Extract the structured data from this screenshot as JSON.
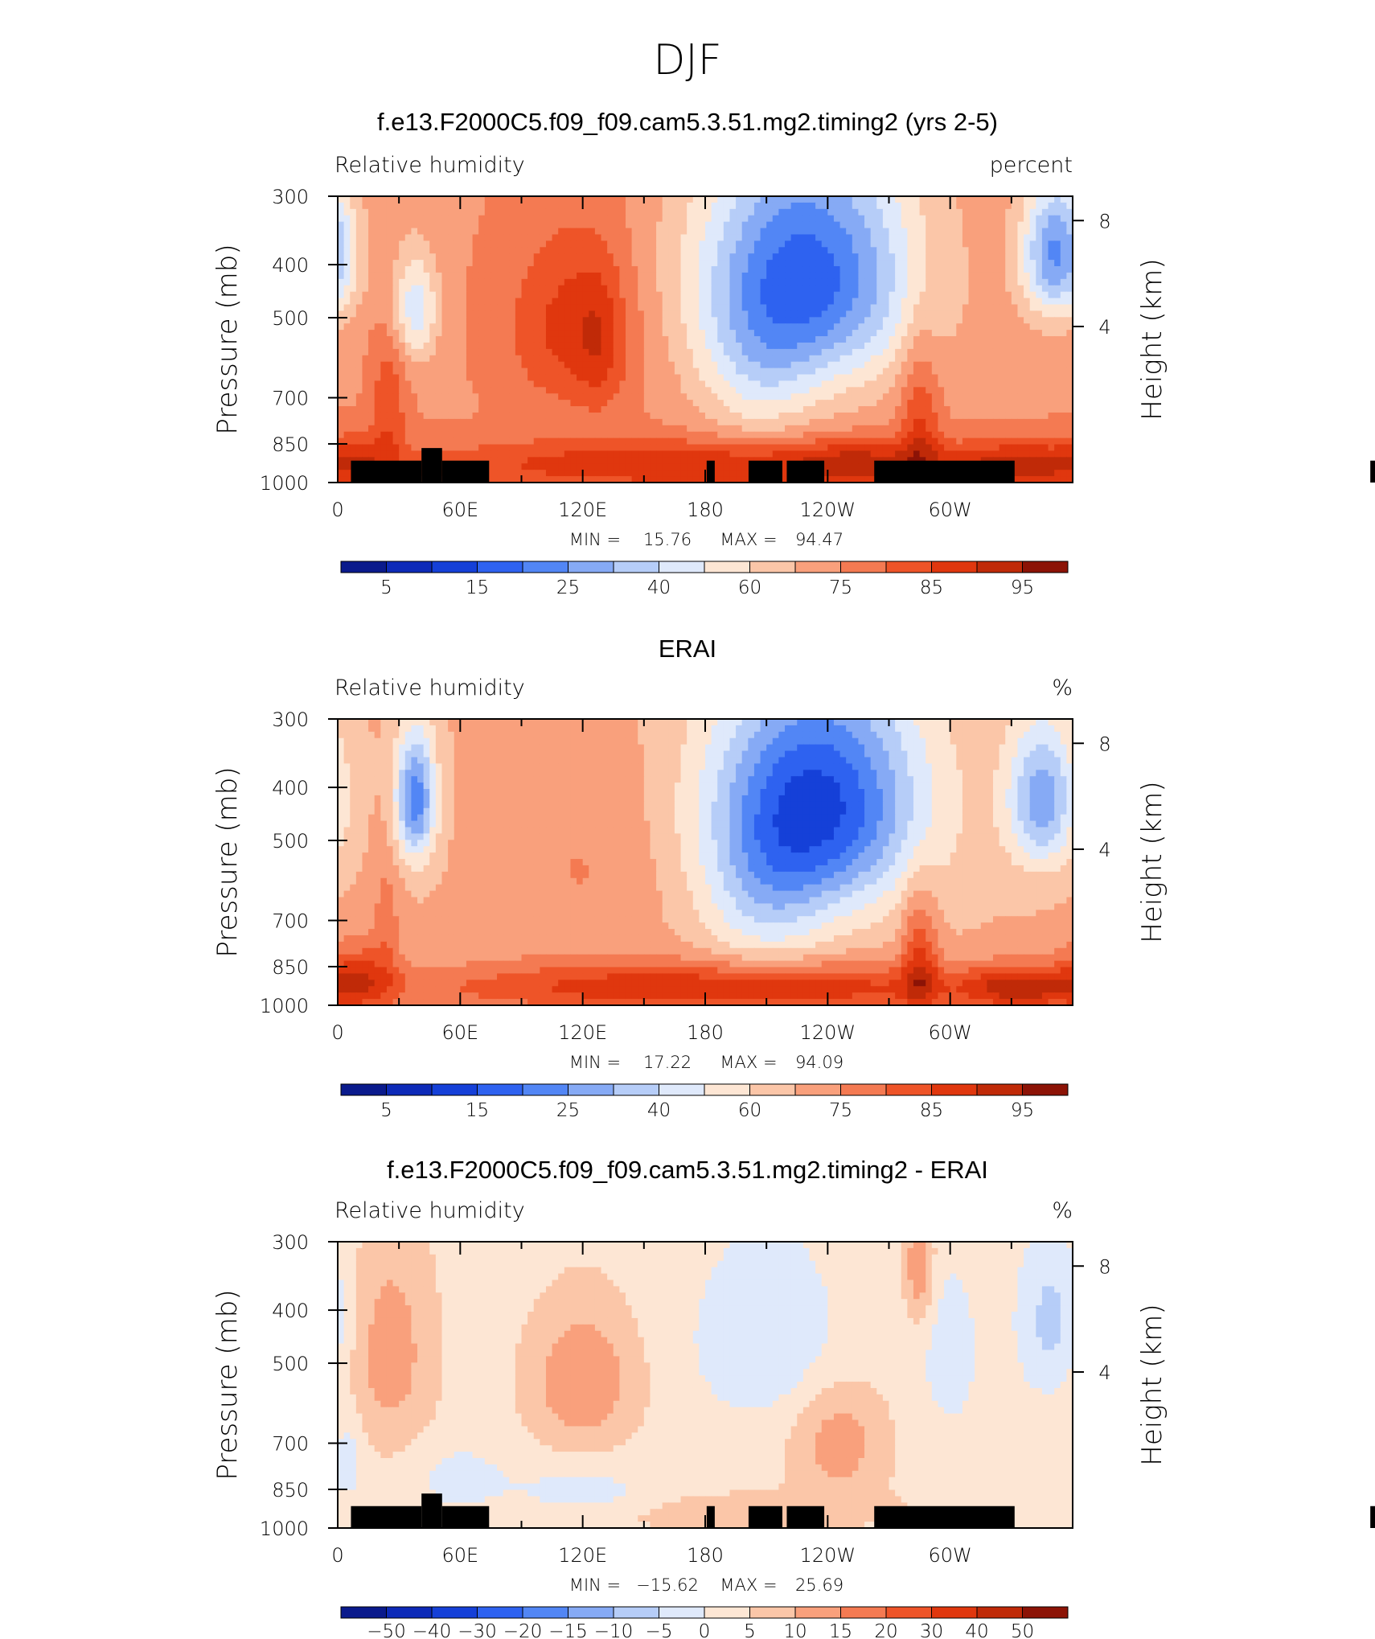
{
  "page_title": "DJF",
  "chart_data": [
    {
      "type": "heatmap",
      "title": "f.e13.F2000C5.f09_f09.cam5.3.51.mg2.timing2 (yrs 2-5)",
      "variable_label": "Relative humidity",
      "units_label": "percent",
      "ylabel": "Pressure (mb)",
      "ylabel_right": "Height (km)",
      "x_ticks": [
        "0",
        "60E",
        "120E",
        "180",
        "120W",
        "60W"
      ],
      "y_ticks": [
        "300",
        "400",
        "500",
        "700",
        "850",
        "1000"
      ],
      "y_right_ticks": [
        "8",
        "4"
      ],
      "stats": {
        "min_label": "MIN =",
        "min": "15.76",
        "max_label": "MAX =",
        "max": "94.47"
      },
      "colorbar_labels": [
        "5",
        "15",
        "25",
        "40",
        "60",
        "75",
        "85",
        "95"
      ],
      "colorbar_colors": [
        "#0a1a8c",
        "#0d2ab8",
        "#1540d8",
        "#2e62f0",
        "#5286f5",
        "#86aaf5",
        "#b6cdf8",
        "#dfe9fb",
        "#fde6d4",
        "#fbc6a8",
        "#f9a07c",
        "#f47a52",
        "#ee5428",
        "#e0370e",
        "#c02a08",
        "#8c1306"
      ],
      "colorbar_min": 0,
      "colorbar_max": 100,
      "field": {
        "base": 68,
        "features": [
          {
            "lon": 25,
            "p": 720,
            "amp": 12,
            "slon": 6,
            "sp": 150
          },
          {
            "lon": 38,
            "p": 480,
            "amp": -22,
            "slon": 8,
            "sp": 80
          },
          {
            "lon": 115,
            "p": 520,
            "amp": 16,
            "slon": 22,
            "sp": 140
          },
          {
            "lon": 128,
            "p": 560,
            "amp": 8,
            "slon": 8,
            "sp": 120
          },
          {
            "lon": 230,
            "p": 420,
            "amp": -46,
            "slon": 38,
            "sp": 160
          },
          {
            "lon": 205,
            "p": 650,
            "amp": -12,
            "slon": 20,
            "sp": 150
          },
          {
            "lon": 352,
            "p": 380,
            "amp": -38,
            "slon": 12,
            "sp": 80
          },
          {
            "lon": 190,
            "p": 930,
            "amp": 20,
            "slon": 110,
            "sp": 70
          },
          {
            "lon": 255,
            "p": 920,
            "amp": 8,
            "slon": 20,
            "sp": 60
          },
          {
            "lon": 285,
            "p": 780,
            "amp": 14,
            "slon": 7,
            "sp": 200
          },
          {
            "lon": 10,
            "p": 920,
            "amp": 12,
            "slon": 12,
            "sp": 80
          },
          {
            "lon": 335,
            "p": 930,
            "amp": 16,
            "slon": 20,
            "sp": 60
          }
        ],
        "min": 15.76,
        "max": 94.47
      },
      "topography": [
        {
          "lon_from": 1.8,
          "lon_to": 11.4,
          "p_top": 912
        },
        {
          "lon_from": 11.4,
          "lon_to": 14.2,
          "p_top": 865
        },
        {
          "lon_from": 14.2,
          "lon_to": 20.6,
          "p_top": 912
        },
        {
          "lon_from": 50.2,
          "lon_to": 51.3,
          "p_top": 912
        },
        {
          "lon_from": 55.9,
          "lon_to": 60.5,
          "p_top": 912
        },
        {
          "lon_from": 61.1,
          "lon_to": 66.2,
          "p_top": 912
        },
        {
          "lon_from": 73.0,
          "lon_to": 92.1,
          "p_top": 912
        },
        {
          "lon_from": 140.5,
          "lon_to": 154.4,
          "p_top": 912
        }
      ]
    },
    {
      "type": "heatmap",
      "title": "ERAI",
      "variable_label": "Relative humidity",
      "units_label": "%",
      "ylabel": "Pressure (mb)",
      "ylabel_right": "Height (km)",
      "x_ticks": [
        "0",
        "60E",
        "120E",
        "180",
        "120W",
        "60W"
      ],
      "y_ticks": [
        "300",
        "400",
        "500",
        "700",
        "850",
        "1000"
      ],
      "y_right_ticks": [
        "8",
        "4"
      ],
      "stats": {
        "min_label": "MIN =",
        "min": "17.22",
        "max_label": "MAX =",
        "max": "94.09"
      },
      "colorbar_labels": [
        "5",
        "15",
        "25",
        "40",
        "60",
        "75",
        "85",
        "95"
      ],
      "colorbar_colors": [
        "#0a1a8c",
        "#0d2ab8",
        "#1540d8",
        "#2e62f0",
        "#5286f5",
        "#86aaf5",
        "#b6cdf8",
        "#dfe9fb",
        "#fde6d4",
        "#fbc6a8",
        "#f9a07c",
        "#f47a52",
        "#ee5428",
        "#e0370e",
        "#c02a08",
        "#8c1306"
      ],
      "colorbar_min": 0,
      "colorbar_max": 100,
      "field": {
        "base": 63,
        "features": [
          {
            "lon": 38,
            "p": 420,
            "amp": -36,
            "slon": 7,
            "sp": 80
          },
          {
            "lon": 120,
            "p": 560,
            "amp": 6,
            "slon": 28,
            "sp": 180
          },
          {
            "lon": 235,
            "p": 430,
            "amp": -46,
            "slon": 36,
            "sp": 150
          },
          {
            "lon": 210,
            "p": 650,
            "amp": -14,
            "slon": 22,
            "sp": 150
          },
          {
            "lon": 345,
            "p": 420,
            "amp": -30,
            "slon": 12,
            "sp": 90
          },
          {
            "lon": 190,
            "p": 930,
            "amp": 24,
            "slon": 110,
            "sp": 70
          },
          {
            "lon": 10,
            "p": 900,
            "amp": 18,
            "slon": 12,
            "sp": 100
          },
          {
            "lon": 285,
            "p": 820,
            "amp": 18,
            "slon": 6,
            "sp": 160
          },
          {
            "lon": 335,
            "p": 930,
            "amp": 20,
            "slon": 18,
            "sp": 60
          },
          {
            "lon": 24,
            "p": 700,
            "amp": 8,
            "slon": 5,
            "sp": 160
          }
        ],
        "min": 17.22,
        "max": 94.09
      },
      "topography": []
    },
    {
      "type": "heatmap",
      "title": "f.e13.F2000C5.f09_f09.cam5.3.51.mg2.timing2 - ERAI",
      "variable_label": "Relative humidity",
      "units_label": "%",
      "ylabel": "Pressure (mb)",
      "ylabel_right": "Height (km)",
      "x_ticks": [
        "0",
        "60E",
        "120E",
        "180",
        "120W",
        "60W"
      ],
      "y_ticks": [
        "300",
        "400",
        "500",
        "700",
        "850",
        "1000"
      ],
      "y_right_ticks": [
        "8",
        "4"
      ],
      "stats": {
        "min_label": "MIN =",
        "min": "−15.62",
        "max_label": "MAX =",
        "max": "25.69"
      },
      "colorbar_labels": [
        "−50",
        "−40",
        "−30",
        "−20",
        "−15",
        "−10",
        "−5",
        "0",
        "5",
        "10",
        "15",
        "20",
        "30",
        "40",
        "50"
      ],
      "colorbar_colors": [
        "#0a1a8c",
        "#0d2ab8",
        "#1540d8",
        "#2e62f0",
        "#5286f5",
        "#86aaf5",
        "#b6cdf8",
        "#dfe9fb",
        "#fde6d4",
        "#fbc6a8",
        "#f9a07c",
        "#f47a52",
        "#ee5428",
        "#e0370e",
        "#c02a08",
        "#8c1306"
      ],
      "colorbar_bounds": [
        -60,
        -50,
        -40,
        -30,
        -20,
        -15,
        -10,
        -5,
        0,
        5,
        10,
        15,
        20,
        30,
        40,
        50,
        60
      ],
      "field": {
        "base": 3,
        "features": [
          {
            "lon": 25,
            "p": 480,
            "amp": 10,
            "slon": 15,
            "sp": 150
          },
          {
            "lon": 120,
            "p": 540,
            "amp": 12,
            "slon": 18,
            "sp": 110
          },
          {
            "lon": 245,
            "p": 700,
            "amp": 10,
            "slon": 16,
            "sp": 120
          },
          {
            "lon": 285,
            "p": 330,
            "amp": 12,
            "slon": 5,
            "sp": 60
          },
          {
            "lon": 210,
            "p": 450,
            "amp": -8,
            "slon": 25,
            "sp": 120
          },
          {
            "lon": 350,
            "p": 420,
            "amp": -10,
            "slon": 12,
            "sp": 100
          },
          {
            "lon": 120,
            "p": 870,
            "amp": -7,
            "slon": 25,
            "sp": 60
          },
          {
            "lon": 5,
            "p": 750,
            "amp": -6,
            "slon": 6,
            "sp": 100
          },
          {
            "lon": 60,
            "p": 820,
            "amp": -6,
            "slon": 15,
            "sp": 80
          },
          {
            "lon": 300,
            "p": 480,
            "amp": -6,
            "slon": 10,
            "sp": 120
          },
          {
            "lon": 180,
            "p": 930,
            "amp": 4,
            "slon": 80,
            "sp": 60
          }
        ],
        "min": -15.62,
        "max": 25.69
      },
      "topography": [
        {
          "lon_from": 1.8,
          "lon_to": 11.4,
          "p_top": 912
        },
        {
          "lon_from": 11.4,
          "lon_to": 14.2,
          "p_top": 865
        },
        {
          "lon_from": 14.2,
          "lon_to": 20.6,
          "p_top": 912
        },
        {
          "lon_from": 50.2,
          "lon_to": 51.3,
          "p_top": 912
        },
        {
          "lon_from": 55.9,
          "lon_to": 60.5,
          "p_top": 912
        },
        {
          "lon_from": 61.1,
          "lon_to": 66.2,
          "p_top": 912
        },
        {
          "lon_from": 73.0,
          "lon_to": 92.1,
          "p_top": 912
        },
        {
          "lon_from": 140.5,
          "lon_to": 154.4,
          "p_top": 912
        }
      ]
    }
  ]
}
